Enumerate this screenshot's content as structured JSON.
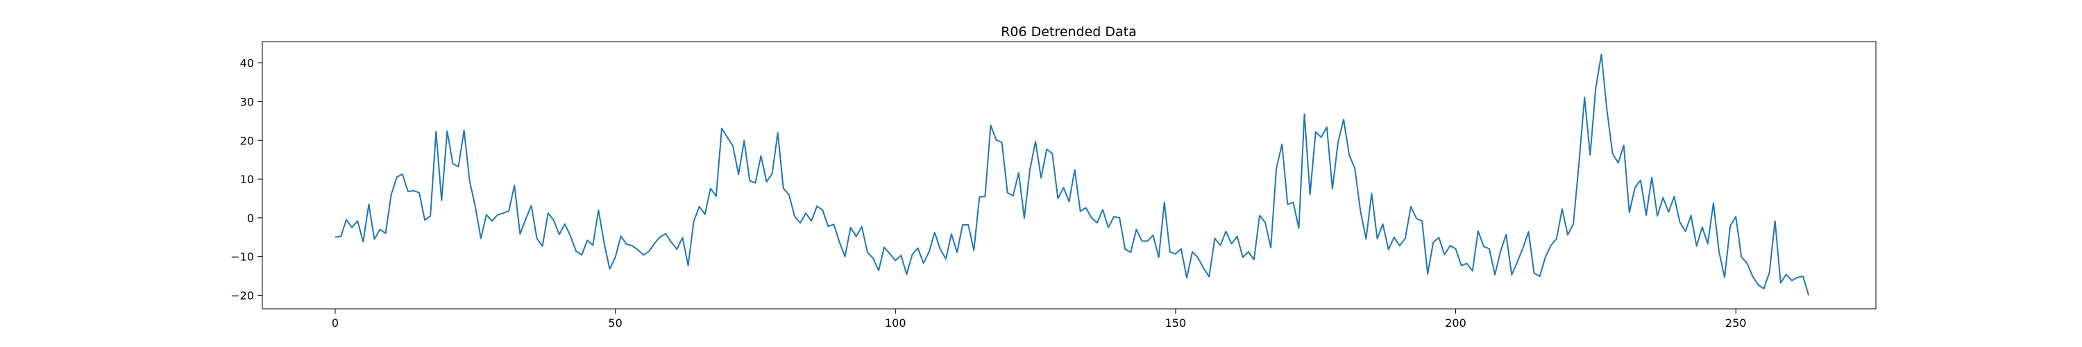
{
  "chart_data": {
    "type": "line",
    "title": "R06 Detrended Data",
    "xlabel": "",
    "ylabel": "",
    "xlim": [
      -13,
      275
    ],
    "ylim": [
      -23.5,
      45.5
    ],
    "xticks": [
      0,
      50,
      100,
      150,
      200,
      250
    ],
    "yticks": [
      -20,
      -10,
      0,
      10,
      20,
      30,
      40
    ],
    "grid": false,
    "legend": "none",
    "series_color": "#1f77b4",
    "series": [
      {
        "values": [
          -5,
          -4.8,
          -0.5,
          -2.5,
          -0.8,
          -6.2,
          3.5,
          -5.5,
          -3,
          -4,
          6,
          10.5,
          11.3,
          6.8,
          7,
          6.5,
          -0.6,
          0.5,
          22.3,
          4.5,
          22.4,
          14,
          13.2,
          22.6,
          9.5,
          3,
          -5.3,
          0.8,
          -0.8,
          0.8,
          1.2,
          1.8,
          8.4,
          -4.2,
          -0.4,
          3.2,
          -5.3,
          -7.3,
          1.2,
          -0.6,
          -4.3,
          -1.6,
          -4.7,
          -8.6,
          -9.6,
          -5.8,
          -7.1,
          2,
          -6.5,
          -13.2,
          -10.2,
          -4.7,
          -6.8,
          -7.2,
          -8.2,
          -9.6,
          -8.7,
          -6.6,
          -4.9,
          -4.1,
          -6.3,
          -8.1,
          -5.1,
          -12.3,
          -0.9,
          2.9,
          0.9,
          7.6,
          5.6,
          23.1,
          20.8,
          18.5,
          11.2,
          19.9,
          9.6,
          9,
          16,
          9.3,
          11.4,
          22,
          7.6,
          6,
          0.4,
          -1.3,
          1.2,
          -0.8,
          3,
          2,
          -2.2,
          -1.7,
          -6.2,
          -10,
          -2.5,
          -4.8,
          -2.3,
          -8.9,
          -10.4,
          -13.6,
          -7.6,
          -9.3,
          -11,
          -9.7,
          -14.6,
          -9.5,
          -7.8,
          -11.7,
          -8.8,
          -3.8,
          -8.1,
          -10.6,
          -4.2,
          -8.9,
          -1.8,
          -1.8,
          -8.4,
          5.4,
          5.5,
          23.9,
          20.1,
          19.5,
          6.5,
          5.7,
          11.6,
          -0.1,
          12.4,
          19.7,
          10.3,
          17.7,
          16.6,
          5,
          7.8,
          4.2,
          12.4,
          1.7,
          2.6,
          0,
          -1.3,
          2.1,
          -2.5,
          0.3,
          0,
          -8.1,
          -8.9,
          -3,
          -6,
          -6,
          -4.5,
          -10.2,
          4,
          -8.8,
          -9.3,
          -8,
          -15.5,
          -8.8,
          -10.3,
          -13,
          -15.2,
          -5.3,
          -7.1,
          -3.5,
          -6.7,
          -4.8,
          -10.2,
          -8.8,
          -10.8,
          0.6,
          -1.2,
          -7.7,
          12.8,
          19,
          3.5,
          4,
          -2.7,
          26.8,
          6,
          22.2,
          20.8,
          23.4,
          7.5,
          19.5,
          25.4,
          16.2,
          12.8,
          1.8,
          -5.5,
          6.3,
          -5.4,
          -1.6,
          -8.2,
          -5,
          -7.2,
          -5.3,
          2.9,
          -0.2,
          -0.8,
          -14.5,
          -6.3,
          -5.1,
          -9.5,
          -7.2,
          -8,
          -12.3,
          -11.8,
          -13.7,
          -3.4,
          -7.4,
          -8,
          -14.7,
          -8.7,
          -4.3,
          -14.7,
          -11.4,
          -7.8,
          -3.6,
          -14.3,
          -15.1,
          -10.2,
          -7.1,
          -5.4,
          2.3,
          -4.4,
          -1.6,
          14,
          31.1,
          16.2,
          33.5,
          42.2,
          27.8,
          16.6,
          14.2,
          18.7,
          1.4,
          7.8,
          9.7,
          0.7,
          10.4,
          0.5,
          5.2,
          1.5,
          5.5,
          -1.1,
          -3.5,
          0.6,
          -7.3,
          -2.4,
          -6.7,
          3.8,
          -8.7,
          -15.4,
          -2.1,
          0.3,
          -10.1,
          -11.7,
          -15.1,
          -17.3,
          -18.3,
          -14.1,
          -0.8,
          -16.8,
          -14.6,
          -16.2,
          -15.4,
          -15.1,
          -20
        ]
      }
    ]
  }
}
